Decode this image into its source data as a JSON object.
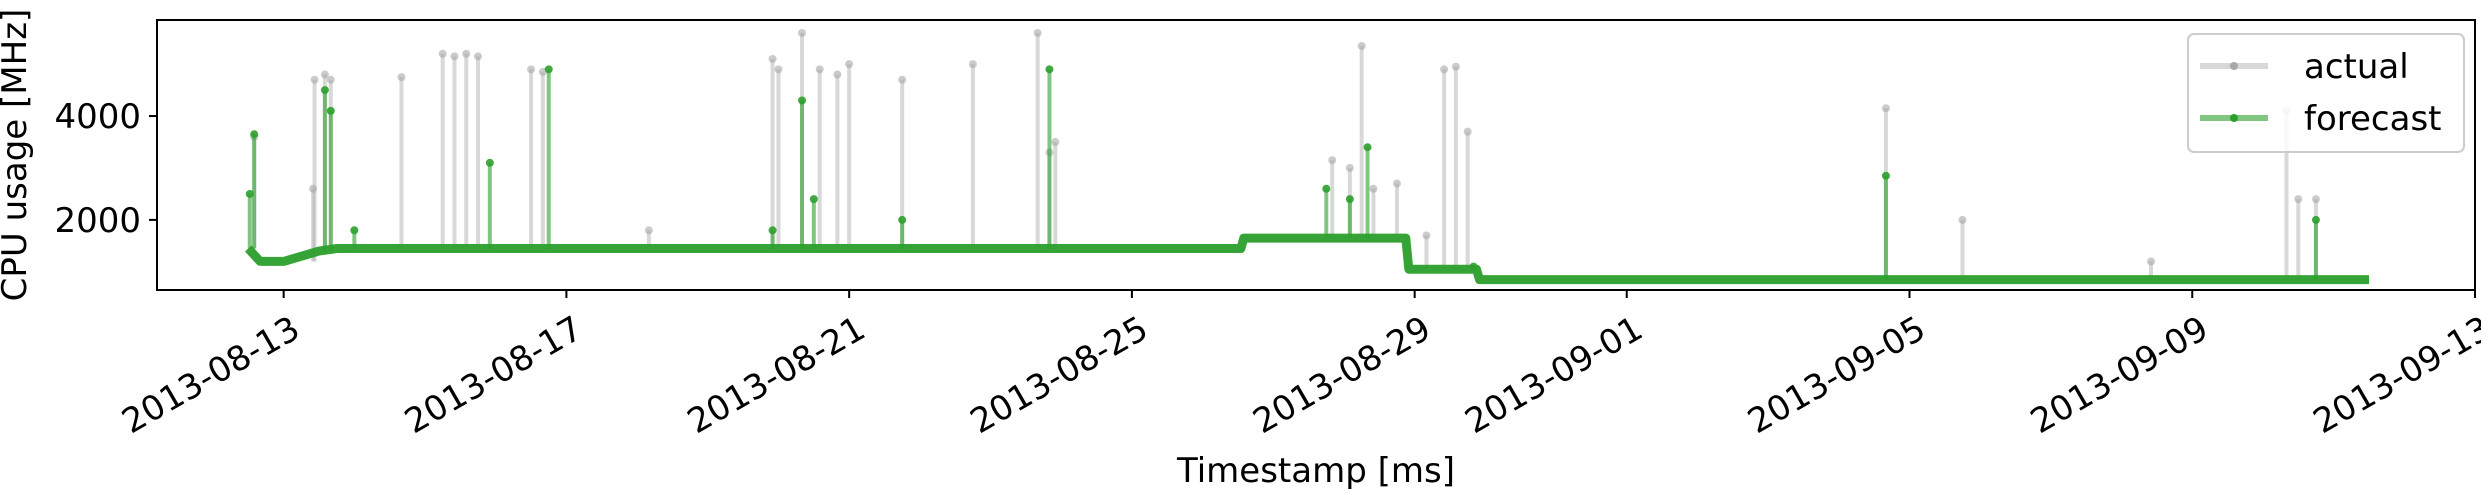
{
  "chart_data": {
    "type": "line",
    "title": "",
    "xlabel": "Timestamp [ms]",
    "ylabel": "CPU usage [MHz]",
    "xlim": [
      "2013-08-11T05:00",
      "2013-09-13T00:00"
    ],
    "ylim": [
      650,
      5850
    ],
    "x_ticks": [
      "2013-08-13",
      "2013-08-17",
      "2013-08-21",
      "2013-08-25",
      "2013-08-29",
      "2013-09-01",
      "2013-09-05",
      "2013-09-09",
      "2013-09-13"
    ],
    "y_ticks": [
      2000,
      4000
    ],
    "grid": false,
    "legend": {
      "placement": "top-right"
    },
    "series": [
      {
        "name": "actual",
        "color": "#a8a8a8",
        "opacity": 0.45,
        "baseline": [
          [
            "2013-08-12T12:00",
            1450
          ],
          [
            "2013-08-12T16:00",
            1200
          ],
          [
            "2013-08-13T00:00",
            1200
          ],
          [
            "2013-08-13T12:00",
            1400
          ],
          [
            "2013-08-13T18:00",
            1450
          ],
          [
            "2013-08-26T13:00",
            1450
          ],
          [
            "2013-08-26T14:00",
            1650
          ],
          [
            "2013-08-28T21:00",
            1650
          ],
          [
            "2013-08-28T22:00",
            1050
          ],
          [
            "2013-08-29T21:00",
            1050
          ],
          [
            "2013-08-29T22:00",
            850
          ],
          [
            "2013-09-11T12:00",
            850
          ]
        ],
        "spikes": [
          [
            "2013-08-12T14:00",
            3600
          ],
          [
            "2013-08-13T10:00",
            2600
          ],
          [
            "2013-08-13T10:30",
            4700
          ],
          [
            "2013-08-13T14:00",
            4800
          ],
          [
            "2013-08-13T16:00",
            4700
          ],
          [
            "2013-08-14T16:00",
            4750
          ],
          [
            "2013-08-15T06:00",
            5200
          ],
          [
            "2013-08-15T10:00",
            5150
          ],
          [
            "2013-08-15T14:00",
            5200
          ],
          [
            "2013-08-15T18:00",
            5150
          ],
          [
            "2013-08-16T12:00",
            4900
          ],
          [
            "2013-08-16T16:00",
            4850
          ],
          [
            "2013-08-18T04:00",
            1800
          ],
          [
            "2013-08-19T22:00",
            5100
          ],
          [
            "2013-08-20T00:00",
            4900
          ],
          [
            "2013-08-20T08:00",
            5600
          ],
          [
            "2013-08-20T14:00",
            4900
          ],
          [
            "2013-08-20T20:00",
            4800
          ],
          [
            "2013-08-21T00:00",
            5000
          ],
          [
            "2013-08-21T18:00",
            4700
          ],
          [
            "2013-08-22T18:00",
            5000
          ],
          [
            "2013-08-23T16:00",
            5600
          ],
          [
            "2013-08-23T20:00",
            3300
          ],
          [
            "2013-08-23T22:00",
            3500
          ],
          [
            "2013-08-27T20:00",
            3150
          ],
          [
            "2013-08-28T02:00",
            3000
          ],
          [
            "2013-08-28T06:00",
            5350
          ],
          [
            "2013-08-28T10:00",
            2600
          ],
          [
            "2013-08-28T18:00",
            2700
          ],
          [
            "2013-08-29T04:00",
            1700
          ],
          [
            "2013-08-29T10:00",
            4900
          ],
          [
            "2013-08-29T14:00",
            4950
          ],
          [
            "2013-08-29T18:00",
            3700
          ],
          [
            "2013-09-04T16:00",
            4150
          ],
          [
            "2013-09-05T18:00",
            2000
          ],
          [
            "2013-09-08T10:00",
            1200
          ],
          [
            "2013-09-10T08:00",
            4100
          ],
          [
            "2013-09-10T12:00",
            2400
          ],
          [
            "2013-09-10T18:00",
            2400
          ]
        ]
      },
      {
        "name": "forecast",
        "color": "#2ca02c",
        "opacity": 0.6,
        "baseline": [
          [
            "2013-08-12T12:00",
            1450
          ],
          [
            "2013-08-12T16:00",
            1200
          ],
          [
            "2013-08-13T00:00",
            1200
          ],
          [
            "2013-08-13T12:00",
            1400
          ],
          [
            "2013-08-13T18:00",
            1450
          ],
          [
            "2013-08-26T13:00",
            1450
          ],
          [
            "2013-08-26T14:00",
            1650
          ],
          [
            "2013-08-28T21:00",
            1650
          ],
          [
            "2013-08-28T22:00",
            1050
          ],
          [
            "2013-08-29T21:00",
            1050
          ],
          [
            "2013-08-29T22:00",
            850
          ],
          [
            "2013-09-11T12:00",
            850
          ]
        ],
        "spikes": [
          [
            "2013-08-12T12:30",
            2500
          ],
          [
            "2013-08-12T14:00",
            3650
          ],
          [
            "2013-08-13T14:00",
            4500
          ],
          [
            "2013-08-13T16:00",
            4100
          ],
          [
            "2013-08-14T00:00",
            1800
          ],
          [
            "2013-08-15T22:00",
            3100
          ],
          [
            "2013-08-16T18:00",
            4900
          ],
          [
            "2013-08-19T22:00",
            1800
          ],
          [
            "2013-08-20T08:00",
            4300
          ],
          [
            "2013-08-20T12:00",
            2400
          ],
          [
            "2013-08-21T18:00",
            2000
          ],
          [
            "2013-08-23T20:00",
            4900
          ],
          [
            "2013-08-27T18:00",
            2600
          ],
          [
            "2013-08-28T02:00",
            2400
          ],
          [
            "2013-08-28T08:00",
            3400
          ],
          [
            "2013-08-29T20:00",
            1100
          ],
          [
            "2013-09-04T16:00",
            2850
          ],
          [
            "2013-09-10T18:00",
            2000
          ]
        ]
      }
    ]
  }
}
